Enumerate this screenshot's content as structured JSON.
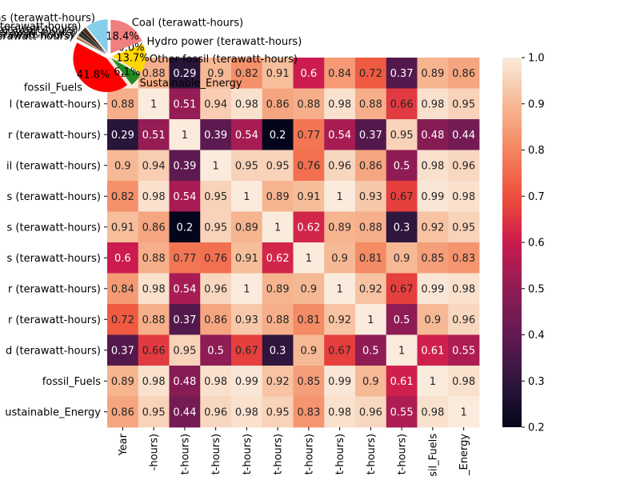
{
  "chart_data": [
    {
      "type": "heatmap",
      "row_labels": [
        "Year",
        "Coal (terawatt-hours)",
        "Hydro power (terawatt-hours)",
        "Other fossil (terawatt-hours)",
        "Natural gas (terawatt-hours)",
        "Traditional biofuels (terawatt-hours)",
        "Other renewables (terawatt-hours)",
        "Oil (terawatt-hours)",
        "Nuclear power (terawatt-hours)",
        "Wind (terawatt-hours)",
        "fossil_Fuels",
        "Sustainable_Energy"
      ],
      "row_labels_visible": [
        "",
        "l (terawatt-hours)",
        "r (terawatt-hours)",
        "il (terawatt-hours)",
        "s (terawatt-hours)",
        "s (terawatt-hours)",
        "s (terawatt-hours)",
        "r (terawatt-hours)",
        "r (terawatt-hours)",
        "d (terawatt-hours)",
        "fossil_Fuels",
        "ustainable_Energy"
      ],
      "col_labels_visible": [
        "Year",
        "-hours)",
        "t-hours)",
        "t-hours)",
        "t-hours)",
        "t-hours)",
        "t-hours)",
        "t-hours)",
        "t-hours)",
        "t-hours)",
        "sil_Fuels",
        "_Energy"
      ],
      "values": [
        [
          1,
          0.88,
          0.29,
          0.9,
          0.82,
          0.91,
          0.6,
          0.84,
          0.72,
          0.37,
          0.89,
          0.86
        ],
        [
          0.88,
          1,
          0.51,
          0.94,
          0.98,
          0.86,
          0.88,
          0.98,
          0.88,
          0.66,
          0.98,
          0.95
        ],
        [
          0.29,
          0.51,
          1,
          0.39,
          0.54,
          0.2,
          0.77,
          0.54,
          0.37,
          0.95,
          0.48,
          0.44
        ],
        [
          0.9,
          0.94,
          0.39,
          1,
          0.95,
          0.95,
          0.76,
          0.96,
          0.86,
          0.5,
          0.98,
          0.96
        ],
        [
          0.82,
          0.98,
          0.54,
          0.95,
          1,
          0.89,
          0.91,
          1,
          0.93,
          0.67,
          0.99,
          0.98
        ],
        [
          0.91,
          0.86,
          0.2,
          0.95,
          0.89,
          1,
          0.62,
          0.89,
          0.88,
          0.3,
          0.92,
          0.95
        ],
        [
          0.6,
          0.88,
          0.77,
          0.76,
          0.91,
          0.62,
          1,
          0.9,
          0.81,
          0.9,
          0.85,
          0.83
        ],
        [
          0.84,
          0.98,
          0.54,
          0.96,
          1,
          0.89,
          0.9,
          1,
          0.92,
          0.67,
          0.99,
          0.98
        ],
        [
          0.72,
          0.88,
          0.37,
          0.86,
          0.93,
          0.88,
          0.81,
          0.92,
          1,
          0.5,
          0.9,
          0.96
        ],
        [
          0.37,
          0.66,
          0.95,
          0.5,
          0.67,
          0.3,
          0.9,
          0.67,
          0.5,
          1,
          0.61,
          0.55
        ],
        [
          0.89,
          0.98,
          0.48,
          0.98,
          0.99,
          0.92,
          0.85,
          0.99,
          0.9,
          0.61,
          1,
          0.98
        ],
        [
          0.86,
          0.95,
          0.44,
          0.96,
          0.98,
          0.95,
          0.83,
          0.98,
          0.96,
          0.55,
          0.98,
          1
        ]
      ],
      "colorbar": {
        "vmin": 0.2,
        "vmax": 1.0,
        "ticks": [
          "0.2",
          "0.3",
          "0.4",
          "0.5",
          "0.6",
          "0.7",
          "0.8",
          "0.9",
          "1.0"
        ],
        "colormap": "rocket"
      },
      "annotations": true,
      "title": "",
      "xlabel": "",
      "ylabel": ""
    },
    {
      "type": "pie",
      "slices": [
        {
          "label": "Natural gas (terawatt-hours)",
          "percent_label": "",
          "value": 10.5,
          "color": "#87ceeb"
        },
        {
          "label": "Traditional biofuels (terawatt-hours)",
          "percent_label": "",
          "value": 1.9,
          "color": "#4d2b14"
        },
        {
          "label": "Other renewables (terawatt-hours)",
          "percent_label": "",
          "value": 1.3,
          "color": "#1b1b1b"
        },
        {
          "label": "Oil (terawatt-hours)",
          "percent_label": "",
          "value": 1.4,
          "color": "#2b2b2b"
        },
        {
          "label": "Nuclear power (terawatt-hours)",
          "percent_label": "",
          "value": 0.8,
          "color": "#d2a679"
        },
        {
          "label": "Wind (terawatt-hours)",
          "percent_label": "",
          "value": 0.7,
          "color": "#8b5a2b"
        },
        {
          "label": "fossil_Fuels",
          "percent_label": "41.8%",
          "value": 41.8,
          "color": "#ff0000"
        },
        {
          "label": "Sustainable_Energy",
          "percent_label": "6.1%",
          "value": 6.1,
          "color": "#228b22"
        },
        {
          "label": "Other fossil (terawatt-hours)",
          "percent_label": "13.7%",
          "value": 13.7,
          "color": "#ffd700"
        },
        {
          "label": "Hydro power (terawatt-hours)",
          "percent_label": "0.0%",
          "value": 0.0,
          "color": "#a52a2a"
        },
        {
          "label": "Coal (terawatt-hours)",
          "percent_label": "18.4%",
          "value": 18.4,
          "color": "#f08080"
        }
      ],
      "title": ""
    }
  ]
}
